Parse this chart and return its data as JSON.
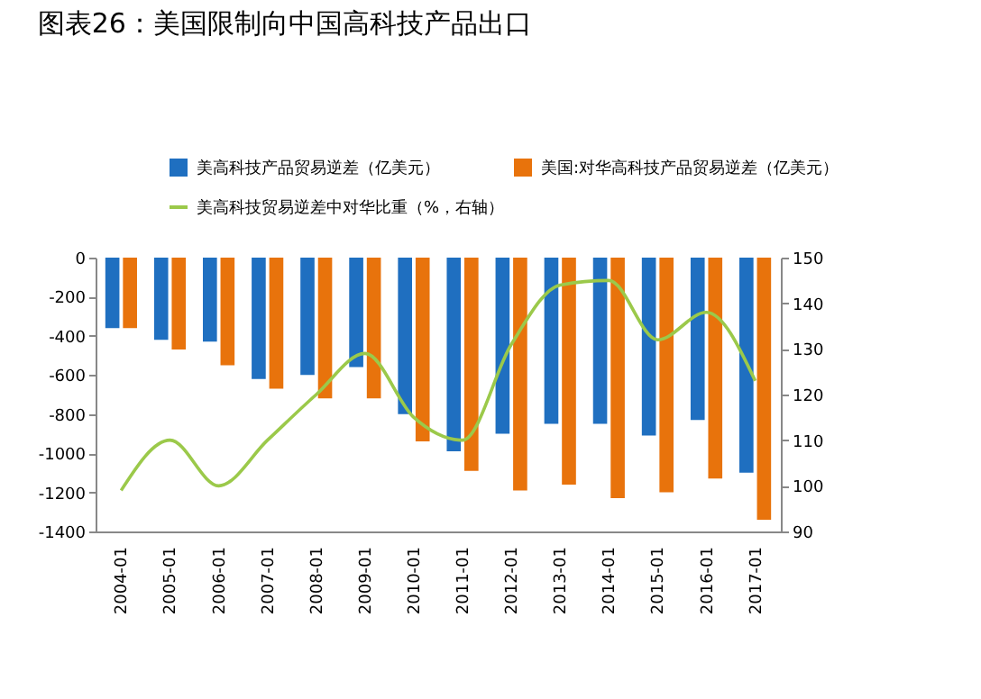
{
  "chart_data": {
    "type": "bar",
    "title": "图表26：美国限制向中国高科技产品出口",
    "categories": [
      "2004-01",
      "2005-01",
      "2006-01",
      "2007-01",
      "2008-01",
      "2009-01",
      "2010-01",
      "2011-01",
      "2012-01",
      "2013-01",
      "2014-01",
      "2015-01",
      "2016-01",
      "2017-01"
    ],
    "series": [
      {
        "name": "美高科技产品贸易逆差（亿美元）",
        "color": "#1f6fc0",
        "values": [
          -360,
          -420,
          -430,
          -620,
          -600,
          -560,
          -800,
          -990,
          -900,
          -850,
          -850,
          -910,
          -830,
          -1100
        ]
      },
      {
        "name": "美国:对华高科技产品贸易逆差（亿美元）",
        "color": "#e8730c",
        "values": [
          -360,
          -470,
          -550,
          -670,
          -720,
          -720,
          -940,
          -1090,
          -1190,
          -1160,
          -1230,
          -1200,
          -1130,
          -1340
        ]
      },
      {
        "name": "美高科技贸易逆差中对华比重（%，右轴）",
        "color": "#9bc94a",
        "type": "line",
        "axis": "y2",
        "values": [
          99,
          110,
          100,
          110,
          120,
          129,
          115,
          110,
          131,
          144,
          145,
          132,
          138,
          123
        ]
      }
    ],
    "ylim": [
      -1400,
      0
    ],
    "yticks": [
      -1400,
      -1200,
      -1000,
      -800,
      -600,
      -400,
      -200,
      0
    ],
    "y2lim": [
      90,
      150
    ],
    "y2ticks": [
      90,
      100,
      110,
      120,
      130,
      140,
      150
    ],
    "legend": "top"
  }
}
